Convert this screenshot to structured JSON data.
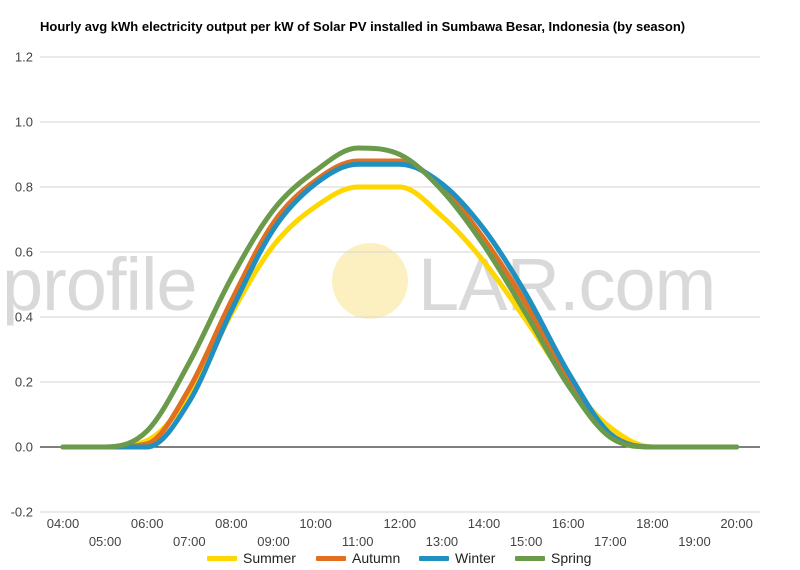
{
  "chart_data": {
    "type": "line",
    "title": "Hourly avg kWh electricity output per kW of Solar PV installed in Sumbawa Besar, Indonesia (by season)",
    "xlabel": "",
    "ylabel": "",
    "x": [
      "04:00",
      "05:00",
      "06:00",
      "07:00",
      "08:00",
      "09:00",
      "10:00",
      "11:00",
      "12:00",
      "13:00",
      "14:00",
      "15:00",
      "16:00",
      "17:00",
      "18:00",
      "19:00",
      "20:00"
    ],
    "ylim": [
      -0.2,
      1.2
    ],
    "yticks": [
      -0.2,
      0.0,
      0.2,
      0.4,
      0.6,
      0.8,
      1.0,
      1.2
    ],
    "ytick_labels": [
      "-0.2",
      "0.0",
      "0.2",
      "0.4",
      "0.6",
      "0.8",
      "1.0",
      "1.2"
    ],
    "grid": true,
    "legend_position": "bottom",
    "series": [
      {
        "name": "Summer",
        "color": "#ffd700",
        "values": [
          0,
          0,
          0.02,
          0.16,
          0.41,
          0.62,
          0.74,
          0.8,
          0.8,
          0.71,
          0.57,
          0.39,
          0.2,
          0.06,
          0,
          0,
          0
        ]
      },
      {
        "name": "Autumn",
        "color": "#e07020",
        "values": [
          0,
          0,
          0.01,
          0.18,
          0.45,
          0.69,
          0.82,
          0.88,
          0.88,
          0.8,
          0.64,
          0.44,
          0.21,
          0.04,
          0,
          0,
          0
        ]
      },
      {
        "name": "Winter",
        "color": "#2090c0",
        "values": [
          0,
          0,
          0,
          0.14,
          0.42,
          0.67,
          0.81,
          0.87,
          0.87,
          0.81,
          0.67,
          0.47,
          0.23,
          0.04,
          0,
          0,
          0
        ]
      },
      {
        "name": "Spring",
        "color": "#6a9a4a",
        "values": [
          0,
          0,
          0.05,
          0.26,
          0.52,
          0.73,
          0.85,
          0.92,
          0.9,
          0.79,
          0.62,
          0.41,
          0.19,
          0.03,
          0,
          0,
          0
        ]
      }
    ]
  },
  "watermark": {
    "left": "profile",
    "right": "LAR.com",
    "color": "#d9d9d9",
    "sun_color": "#fdf0c0"
  }
}
